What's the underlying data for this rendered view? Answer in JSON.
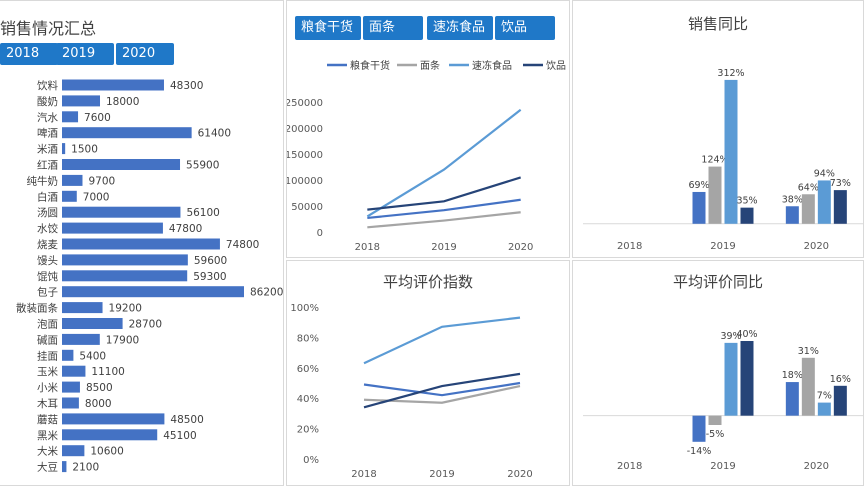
{
  "summary": {
    "title": "销售情况汇总",
    "years": [
      "2018",
      "2019",
      "2020"
    ]
  },
  "filter": {
    "categories": [
      "粮食干货",
      "面条",
      "速冻食品",
      "饮品"
    ]
  },
  "colors": {
    "button": "#1f78c8",
    "bar": "#4472c4",
    "series": [
      "#4472c4",
      "#a5a5a5",
      "#5b9bd5",
      "#264478"
    ]
  },
  "chart_data": [
    {
      "type": "bar",
      "orientation": "horizontal",
      "title": "销售情况汇总",
      "categories": [
        "饮料",
        "酸奶",
        "汽水",
        "啤酒",
        "米酒",
        "红酒",
        "纯牛奶",
        "白酒",
        "汤圆",
        "水饺",
        "烧麦",
        "馒头",
        "馄饨",
        "包子",
        "散装面条",
        "泡面",
        "碱面",
        "挂面",
        "玉米",
        "小米",
        "木耳",
        "蘑菇",
        "黑米",
        "大米",
        "大豆"
      ],
      "values": [
        48300,
        18000,
        7600,
        61400,
        1500,
        55900,
        9700,
        7000,
        56100,
        47800,
        74800,
        59600,
        59300,
        86200,
        19200,
        28700,
        17900,
        5400,
        11100,
        8500,
        8000,
        48500,
        45100,
        10600,
        2100
      ],
      "data_labels": true
    },
    {
      "type": "line",
      "title": "",
      "x": [
        "2018",
        "2019",
        "2020"
      ],
      "ylim": [
        0,
        250000
      ],
      "yticks": [
        "0",
        "50000",
        "100000",
        "150000",
        "200000",
        "250000"
      ],
      "legend_position": "top",
      "series": [
        {
          "name": "粮食干货",
          "values": [
            27000,
            42000,
            62000
          ]
        },
        {
          "name": "面条",
          "values": [
            9000,
            22000,
            38000
          ]
        },
        {
          "name": "速冻食品",
          "values": [
            30000,
            120000,
            235000
          ]
        },
        {
          "name": "饮品",
          "values": [
            43000,
            59000,
            105000
          ]
        }
      ]
    },
    {
      "type": "bar",
      "title": "销售同比",
      "categories": [
        "2018",
        "2019",
        "2020"
      ],
      "ylim": [
        -0.2,
        3.4
      ],
      "series": [
        {
          "values": [
            null,
            0.69,
            0.38
          ],
          "labels": [
            "",
            "69%",
            "38%"
          ]
        },
        {
          "values": [
            null,
            1.24,
            0.64
          ],
          "labels": [
            "",
            "124%",
            "64%"
          ]
        },
        {
          "values": [
            null,
            3.12,
            0.94
          ],
          "labels": [
            "",
            "312%",
            "94%"
          ]
        },
        {
          "values": [
            null,
            0.35,
            0.73
          ],
          "labels": [
            "",
            "35%",
            "73%"
          ]
        }
      ]
    },
    {
      "type": "line",
      "title": "平均评价指数",
      "x": [
        "2018",
        "2019",
        "2020"
      ],
      "ylim": [
        0,
        1
      ],
      "yticks": [
        "0%",
        "20%",
        "40%",
        "60%",
        "80%",
        "100%"
      ],
      "series": [
        {
          "values": [
            0.49,
            0.42,
            0.5
          ]
        },
        {
          "values": [
            0.39,
            0.37,
            0.48
          ]
        },
        {
          "values": [
            0.63,
            0.87,
            0.93
          ]
        },
        {
          "values": [
            0.34,
            0.48,
            0.56
          ]
        }
      ]
    },
    {
      "type": "bar",
      "title": "平均评价同比",
      "categories": [
        "2018",
        "2019",
        "2020"
      ],
      "ylim": [
        -0.2,
        0.55
      ],
      "series": [
        {
          "values": [
            null,
            -0.14,
            0.18
          ],
          "labels": [
            "",
            "-14%",
            "18%"
          ]
        },
        {
          "values": [
            null,
            -0.05,
            0.31
          ],
          "labels": [
            "",
            "-5%",
            "31%"
          ]
        },
        {
          "values": [
            null,
            0.39,
            0.07
          ],
          "labels": [
            "",
            "39%",
            "7%"
          ]
        },
        {
          "values": [
            null,
            0.4,
            0.16
          ],
          "labels": [
            "",
            "40%",
            "16%"
          ]
        }
      ]
    }
  ]
}
